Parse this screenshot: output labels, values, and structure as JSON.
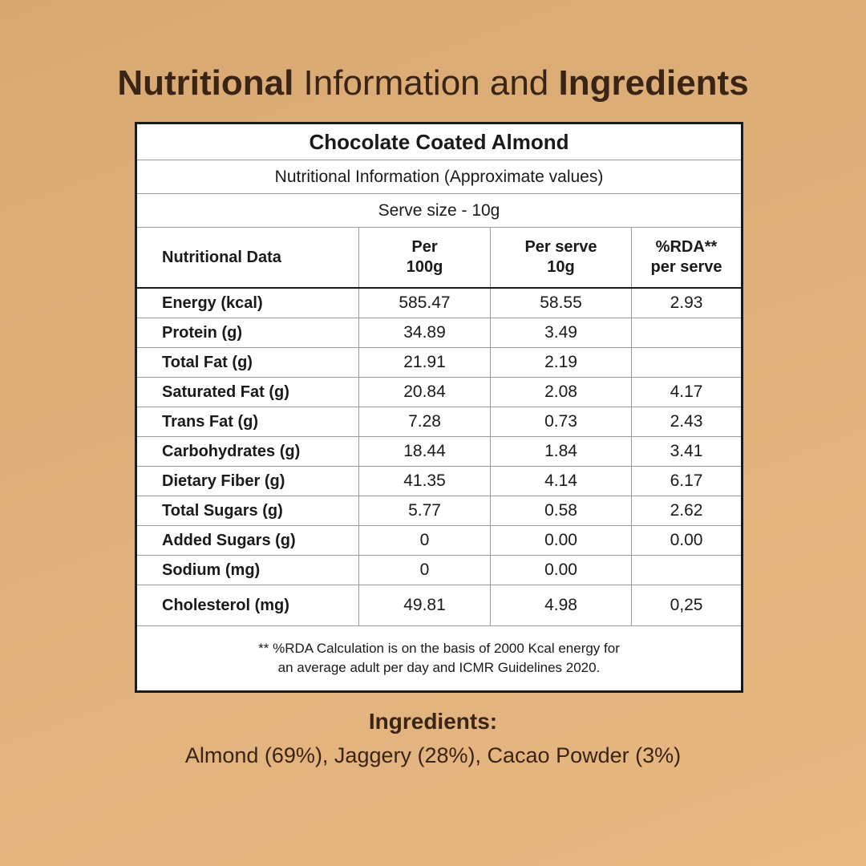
{
  "headline": {
    "part1": "Nutritional",
    "part2": " Information and ",
    "part3": "Ingredients"
  },
  "table": {
    "product": "Chocolate Coated Almond",
    "subtitle": "Nutritional Information (Approximate values)",
    "serve_size": "Serve size - 10g",
    "headers": {
      "col1": "Nutritional Data",
      "col2_line1": "Per",
      "col2_line2": "100g",
      "col3_line1": "Per serve",
      "col3_line2": "10g",
      "col4_line1": "%RDA**",
      "col4_line2": "per serve"
    },
    "rows": [
      {
        "label": "Energy (kcal)",
        "per100": "585.47",
        "perServe": "58.55",
        "rda": "2.93"
      },
      {
        "label": "Protein (g)",
        "per100": "34.89",
        "perServe": "3.49",
        "rda": ""
      },
      {
        "label": "Total Fat (g)",
        "per100": "21.91",
        "perServe": "2.19",
        "rda": ""
      },
      {
        "label": "Saturated Fat (g)",
        "per100": "20.84",
        "perServe": "2.08",
        "rda": "4.17"
      },
      {
        "label": "Trans Fat (g)",
        "per100": "7.28",
        "perServe": "0.73",
        "rda": "2.43"
      },
      {
        "label": "Carbohydrates (g)",
        "per100": "18.44",
        "perServe": "1.84",
        "rda": "3.41"
      },
      {
        "label": "Dietary Fiber (g)",
        "per100": "41.35",
        "perServe": "4.14",
        "rda": "6.17"
      },
      {
        "label": "Total Sugars (g)",
        "per100": "5.77",
        "perServe": "0.58",
        "rda": "2.62"
      },
      {
        "label": "Added Sugars (g)",
        "per100": "0",
        "perServe": "0.00",
        "rda": "0.00"
      },
      {
        "label": "Sodium (mg)",
        "per100": "0",
        "perServe": "0.00",
        "rda": ""
      },
      {
        "label": "Cholesterol (mg)",
        "per100": "49.81",
        "perServe": "4.98",
        "rda": "0,25"
      }
    ],
    "note_line1": "** %RDA Calculation is on the basis of 2000 Kcal energy for",
    "note_line2": "an average adult per day and ICMR Guidelines 2020."
  },
  "ingredients": {
    "title": "Ingredients:",
    "text": "Almond (69%), Jaggery (28%), Cacao Powder (3%)"
  }
}
